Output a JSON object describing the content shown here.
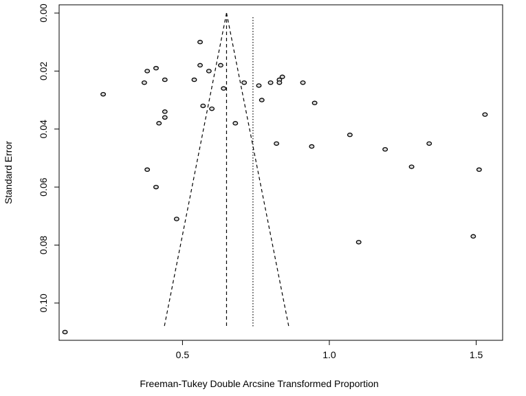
{
  "chart_data": {
    "type": "scatter",
    "title": "",
    "xlabel": "Freeman-Tukey Double Arcsine Transformed Proportion",
    "ylabel": "Standard Error",
    "xlim": [
      0.08,
      1.59
    ],
    "ylim": [
      0.11,
      0.0
    ],
    "y_reversed": true,
    "x_ticks": [
      0.5,
      1.0,
      1.5
    ],
    "x_tick_labels": [
      "0.5",
      "1.0",
      "1.5"
    ],
    "y_ticks": [
      0.0,
      0.02,
      0.04,
      0.06,
      0.08,
      0.1
    ],
    "y_tick_labels": [
      "0.00",
      "0.02",
      "0.04",
      "0.06",
      "0.08",
      "0.10"
    ],
    "grid": false,
    "legend": "none",
    "fixed_effect_estimate": 0.65,
    "random_effect_estimate": 0.74,
    "funnel_max_se": 0.108,
    "points": [
      {
        "x": 0.56,
        "y": 0.01
      },
      {
        "x": 0.56,
        "y": 0.018
      },
      {
        "x": 0.63,
        "y": 0.018
      },
      {
        "x": 0.41,
        "y": 0.019
      },
      {
        "x": 0.38,
        "y": 0.02
      },
      {
        "x": 0.59,
        "y": 0.02
      },
      {
        "x": 0.84,
        "y": 0.022
      },
      {
        "x": 0.44,
        "y": 0.023
      },
      {
        "x": 0.54,
        "y": 0.023
      },
      {
        "x": 0.83,
        "y": 0.023
      },
      {
        "x": 0.37,
        "y": 0.024
      },
      {
        "x": 0.71,
        "y": 0.024
      },
      {
        "x": 0.8,
        "y": 0.024
      },
      {
        "x": 0.83,
        "y": 0.024
      },
      {
        "x": 0.91,
        "y": 0.024
      },
      {
        "x": 0.76,
        "y": 0.025
      },
      {
        "x": 0.64,
        "y": 0.026
      },
      {
        "x": 0.23,
        "y": 0.028
      },
      {
        "x": 0.77,
        "y": 0.03
      },
      {
        "x": 0.95,
        "y": 0.031
      },
      {
        "x": 0.57,
        "y": 0.032
      },
      {
        "x": 0.6,
        "y": 0.033
      },
      {
        "x": 0.44,
        "y": 0.034
      },
      {
        "x": 1.53,
        "y": 0.035
      },
      {
        "x": 0.44,
        "y": 0.036
      },
      {
        "x": 0.42,
        "y": 0.038
      },
      {
        "x": 0.68,
        "y": 0.038
      },
      {
        "x": 1.07,
        "y": 0.042
      },
      {
        "x": 0.82,
        "y": 0.045
      },
      {
        "x": 1.34,
        "y": 0.045
      },
      {
        "x": 0.94,
        "y": 0.046
      },
      {
        "x": 1.19,
        "y": 0.047
      },
      {
        "x": 1.28,
        "y": 0.053
      },
      {
        "x": 0.38,
        "y": 0.054
      },
      {
        "x": 1.51,
        "y": 0.054
      },
      {
        "x": 0.41,
        "y": 0.06
      },
      {
        "x": 0.48,
        "y": 0.071
      },
      {
        "x": 1.49,
        "y": 0.077
      },
      {
        "x": 1.1,
        "y": 0.079
      },
      {
        "x": 0.1,
        "y": 0.11
      }
    ]
  }
}
